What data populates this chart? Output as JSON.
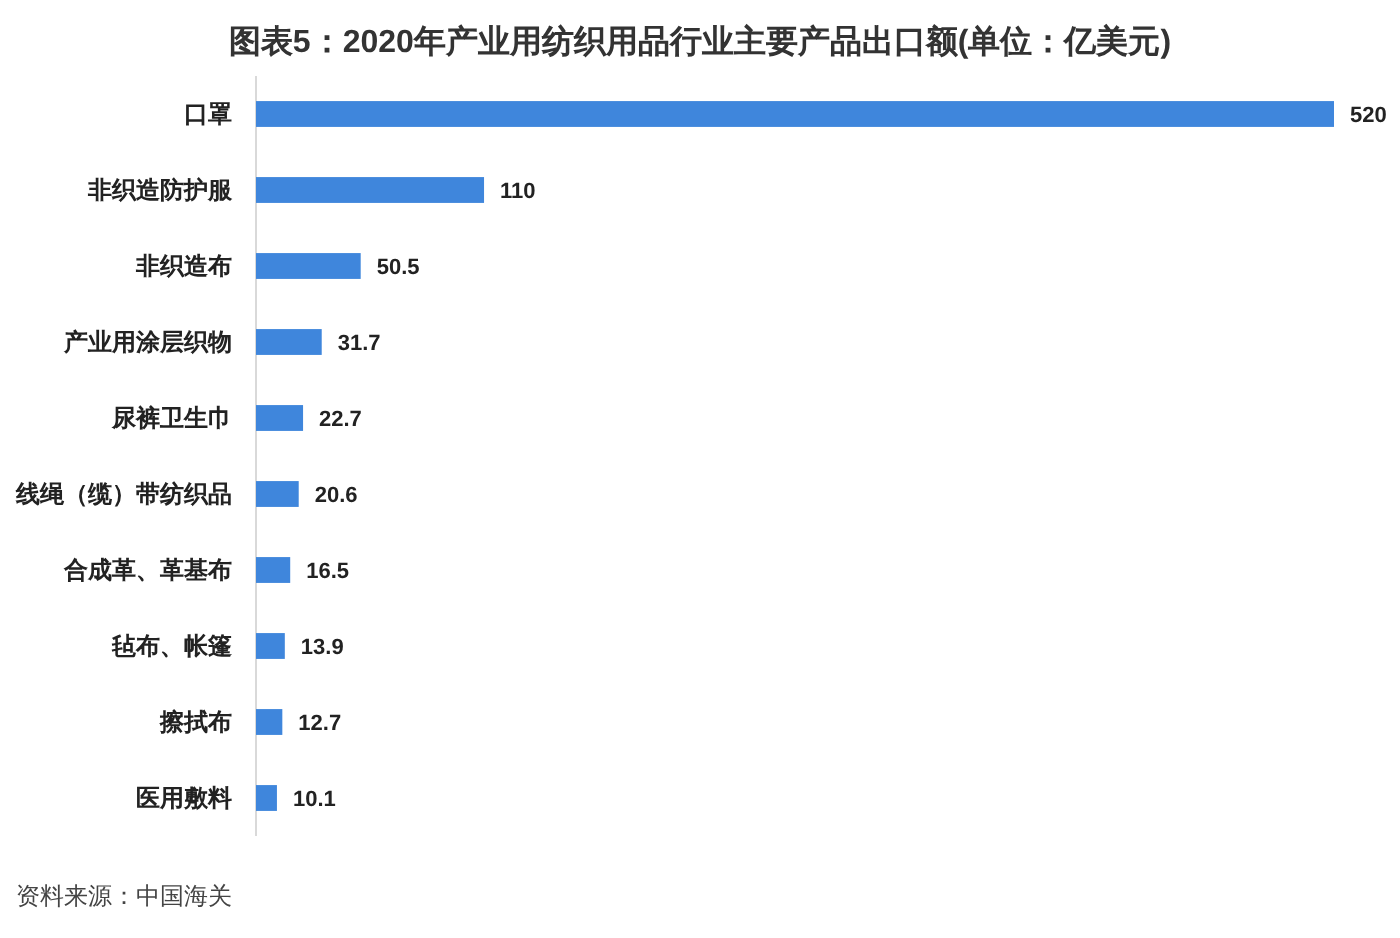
{
  "chart_data": {
    "type": "bar",
    "orientation": "horizontal",
    "title": "图表5：2020年产业用纺织用品行业主要产品出口额(单位：亿美元)",
    "categories": [
      "口罩",
      "非织造防护服",
      "非织造布",
      "产业用涂层织物",
      "尿裤卫生巾",
      "线绳（缆）带纺织品",
      "合成革、革基布",
      "毡布、帐篷",
      "擦拭布",
      "医用敷料"
    ],
    "values": [
      520,
      110,
      50.5,
      31.7,
      22.7,
      20.6,
      16.5,
      13.9,
      12.7,
      10.1
    ],
    "color": "#3f86dc",
    "data_labels": true,
    "annotations": [
      "资料来源：中国海关"
    ]
  }
}
